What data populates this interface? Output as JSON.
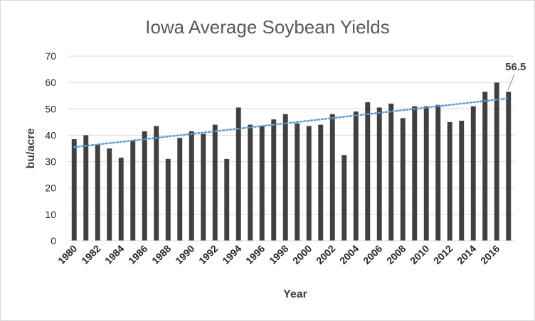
{
  "chart_data": {
    "type": "bar",
    "title": "Iowa Average Soybean Yields",
    "xlabel": "Year",
    "ylabel": "bu/acre",
    "ylim": [
      0,
      70
    ],
    "yticks": [
      "0",
      "10",
      "20",
      "30",
      "40",
      "50",
      "60",
      "70"
    ],
    "grid": true,
    "legend": "none",
    "bar_color": "#404040",
    "trend_color": "#5b9bd5",
    "x": [
      1980,
      1981,
      1982,
      1983,
      1984,
      1985,
      1986,
      1987,
      1988,
      1989,
      1990,
      1991,
      1992,
      1993,
      1994,
      1995,
      1996,
      1997,
      1998,
      1999,
      2000,
      2001,
      2002,
      2003,
      2004,
      2005,
      2006,
      2007,
      2008,
      2009,
      2010,
      2011,
      2012,
      2013,
      2014,
      2015,
      2016,
      2017
    ],
    "xtick_labels": [
      "1980",
      "1982",
      "1984",
      "1986",
      "1988",
      "1990",
      "1992",
      "1994",
      "1996",
      "1998",
      "2000",
      "2002",
      "2004",
      "2006",
      "2008",
      "2010",
      "2012",
      "2014",
      "2016"
    ],
    "series": [
      {
        "values": [
          38.5,
          40,
          36.5,
          35,
          31.5,
          38,
          41.5,
          43.5,
          31,
          39,
          41.5,
          40.5,
          44,
          31,
          50.5,
          44,
          43.5,
          46,
          48,
          44.5,
          43.5,
          44,
          48,
          32.5,
          49,
          52.5,
          50.5,
          52,
          46.5,
          51,
          51,
          51.5,
          45,
          45.5,
          51,
          56.5,
          60,
          56.5
        ]
      }
    ],
    "trendline": {
      "type": "linear",
      "start": 35.5,
      "end": 54.0
    },
    "annotations": [
      {
        "x": 2017,
        "text": "56.5"
      }
    ]
  }
}
